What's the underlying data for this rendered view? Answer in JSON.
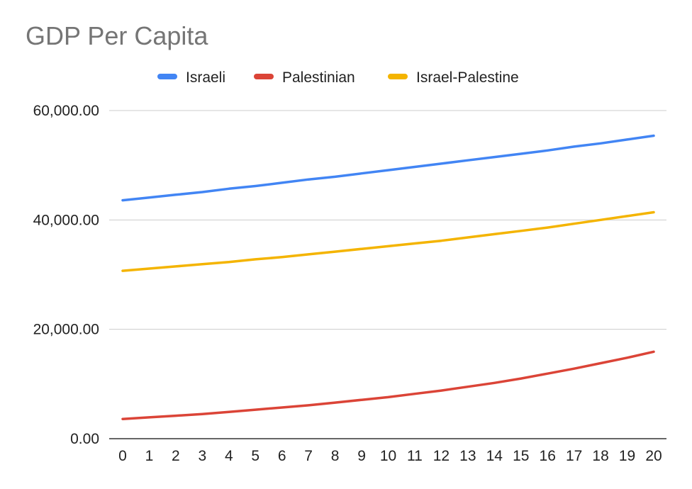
{
  "chart_data": {
    "type": "line",
    "title": "GDP Per Capita",
    "xlabel": "",
    "ylabel": "",
    "x": [
      0,
      1,
      2,
      3,
      4,
      5,
      6,
      7,
      8,
      9,
      10,
      11,
      12,
      13,
      14,
      15,
      16,
      17,
      18,
      19,
      20
    ],
    "ylim": [
      0,
      60000
    ],
    "yticks": [
      "0.00",
      "20,000.00",
      "40,000.00",
      "60,000.00"
    ],
    "ytick_values": [
      0,
      20000,
      40000,
      60000
    ],
    "grid": true,
    "legend_position": "top",
    "series": [
      {
        "name": "Israeli",
        "color": "#4285F4",
        "values": [
          43600,
          44100,
          44600,
          45100,
          45700,
          46200,
          46800,
          47400,
          47900,
          48500,
          49100,
          49700,
          50300,
          50900,
          51500,
          52100,
          52700,
          53400,
          54000,
          54700,
          55400
        ]
      },
      {
        "name": "Palestinian",
        "color": "#DB4437",
        "values": [
          3600,
          3900,
          4200,
          4500,
          4900,
          5300,
          5700,
          6100,
          6600,
          7100,
          7600,
          8200,
          8800,
          9500,
          10200,
          11000,
          11900,
          12800,
          13800,
          14800,
          15900
        ]
      },
      {
        "name": "Israel-Palestine",
        "color": "#F4B400",
        "values": [
          30700,
          31100,
          31500,
          31900,
          32300,
          32800,
          33200,
          33700,
          34200,
          34700,
          35200,
          35700,
          36200,
          36800,
          37400,
          38000,
          38600,
          39300,
          40000,
          40700,
          41400
        ]
      }
    ]
  }
}
